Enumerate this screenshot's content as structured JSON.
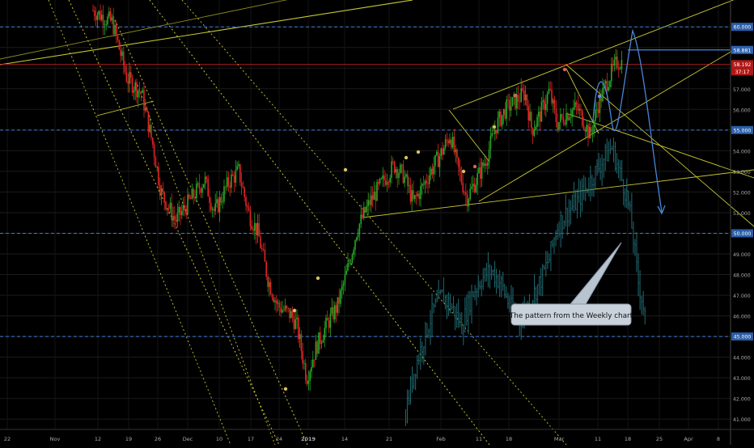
{
  "chart_data": {
    "type": "candlestick",
    "y_range": [
      40.5,
      61.3
    ],
    "y_ticks": [
      "41.000",
      "42.000",
      "43.000",
      "44.000",
      "45.000",
      "46.000",
      "47.000",
      "48.000",
      "49.000",
      "50.000",
      "51.000",
      "52.000",
      "53.000",
      "54.000",
      "55.000",
      "56.000",
      "57.000",
      "58.000",
      "59.000",
      "60.000"
    ],
    "x_ticks": [
      "22",
      "Nov",
      "12",
      "19",
      "26",
      "Dec",
      "10",
      "17",
      "24",
      "2019",
      "14",
      "21",
      "Feb",
      "11",
      "18",
      "Mar",
      "11",
      "18",
      "25",
      "Apr",
      "8"
    ],
    "price_tags": [
      {
        "label": "60.000",
        "value": 60.0,
        "kind": "level"
      },
      {
        "label": "58.881",
        "value": 58.881,
        "kind": "pattern"
      },
      {
        "label": "58.192",
        "value": 58.192,
        "kind": "last"
      },
      {
        "label": "37:17",
        "value": 57.9,
        "kind": "countdown"
      },
      {
        "label": "55.000",
        "value": 55.0,
        "kind": "level"
      },
      {
        "label": "50.000",
        "value": 50.0,
        "kind": "level"
      },
      {
        "label": "45.000",
        "value": 45.0,
        "kind": "level"
      }
    ],
    "horizontal_levels": [
      60.0,
      55.0,
      50.0,
      45.0
    ],
    "last_price_line": 58.192,
    "annotation": "The pattern from the Weekly chart",
    "colors": {
      "up": "#26a826",
      "down": "#e02424",
      "level": "#3b7ddd",
      "trend": "#c8c832",
      "projection": "#4a86d8",
      "ghost": "#1f6b72",
      "last": "#cc1f1f"
    },
    "series": [
      {
        "name": "",
        "kind": "price-candles",
        "close_path": [
          [
            0,
            60.8
          ],
          [
            20,
            60.2
          ],
          [
            35,
            57.5
          ],
          [
            50,
            56.8
          ],
          [
            62,
            54.2
          ],
          [
            70,
            52.0
          ],
          [
            85,
            50.6
          ],
          [
            100,
            51.6
          ],
          [
            115,
            52.6
          ],
          [
            125,
            51.0
          ],
          [
            140,
            52.5
          ],
          [
            150,
            53.0
          ],
          [
            160,
            51.0
          ],
          [
            170,
            50.0
          ],
          [
            180,
            47.8
          ],
          [
            190,
            46.5
          ],
          [
            205,
            46.0
          ],
          [
            210,
            45.5
          ],
          [
            220,
            43.0
          ],
          [
            230,
            44.5
          ],
          [
            240,
            45.5
          ],
          [
            252,
            46.5
          ],
          [
            262,
            48.2
          ],
          [
            272,
            50.2
          ],
          [
            285,
            51.5
          ],
          [
            300,
            52.6
          ],
          [
            310,
            53.3
          ],
          [
            320,
            52.8
          ],
          [
            330,
            51.5
          ],
          [
            340,
            52.3
          ],
          [
            350,
            53.2
          ],
          [
            360,
            54.0
          ],
          [
            368,
            54.8
          ],
          [
            375,
            53.3
          ],
          [
            385,
            51.7
          ],
          [
            395,
            52.6
          ],
          [
            405,
            53.6
          ],
          [
            415,
            55.2
          ],
          [
            425,
            56.0
          ],
          [
            435,
            56.4
          ],
          [
            445,
            56.8
          ],
          [
            452,
            55.0
          ],
          [
            460,
            55.7
          ],
          [
            470,
            56.9
          ],
          [
            478,
            55.3
          ],
          [
            488,
            55.8
          ],
          [
            498,
            56.1
          ],
          [
            505,
            55.5
          ],
          [
            512,
            54.7
          ],
          [
            520,
            56.2
          ],
          [
            530,
            57.4
          ],
          [
            540,
            58.3
          ],
          [
            545,
            58.3
          ]
        ]
      },
      {
        "name": "",
        "kind": "weekly-pattern-bars",
        "close_path": [
          [
            320,
            40.9
          ],
          [
            330,
            43.2
          ],
          [
            340,
            44.8
          ],
          [
            350,
            46.2
          ],
          [
            360,
            47.0
          ],
          [
            370,
            46.4
          ],
          [
            380,
            45.5
          ],
          [
            390,
            47.0
          ],
          [
            400,
            47.8
          ],
          [
            410,
            48.2
          ],
          [
            420,
            47.6
          ],
          [
            430,
            46.4
          ],
          [
            440,
            45.8
          ],
          [
            450,
            46.7
          ],
          [
            460,
            47.6
          ],
          [
            470,
            48.8
          ],
          [
            478,
            50.3
          ],
          [
            488,
            51.0
          ],
          [
            498,
            51.5
          ],
          [
            508,
            52.2
          ],
          [
            518,
            53.0
          ],
          [
            526,
            53.6
          ],
          [
            534,
            54.2
          ],
          [
            542,
            53.0
          ],
          [
            550,
            51.8
          ],
          [
            556,
            50.0
          ],
          [
            561,
            47.8
          ],
          [
            566,
            46.7
          ],
          [
            570,
            45.5
          ]
        ]
      }
    ]
  }
}
